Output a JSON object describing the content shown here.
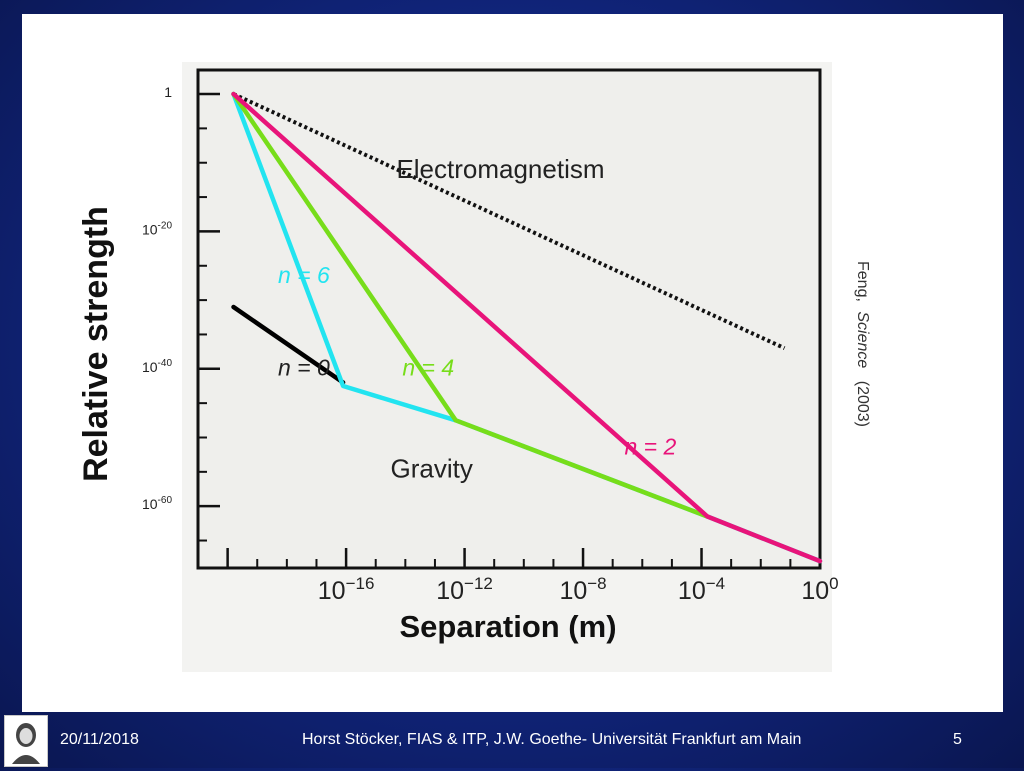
{
  "footer": {
    "date": "20/11/2018",
    "center_text": "Horst Stöcker, FIAS & ITP, J.W. Goethe- Universität Frankfurt am Main",
    "page_number": "5"
  },
  "side_note": {
    "author": "Feng,",
    "journal": "Science",
    "year": "(2003)"
  },
  "colors": {
    "slide_background": "#10247a",
    "panel": "#ffffff",
    "plot_background": "#efefec",
    "electromagnetism": "#111111",
    "gravity_n0": "#000000",
    "gravity_n2": "#e8147a",
    "gravity_n4": "#77dd1a",
    "gravity_n6": "#22e4f0"
  },
  "chart_data": {
    "type": "line",
    "xlabel": "Separation (m)",
    "ylabel": "Relative strength",
    "x_scale": "log10",
    "y_scale": "log10",
    "xlim": [
      -21,
      0
    ],
    "ylim": [
      -69,
      3.5
    ],
    "x_ticks": [
      {
        "value": -16,
        "base": "10",
        "exp": "−16"
      },
      {
        "value": -12,
        "base": "10",
        "exp": "−12"
      },
      {
        "value": -8,
        "base": "10",
        "exp": "−8"
      },
      {
        "value": -4,
        "base": "10",
        "exp": "−4"
      },
      {
        "value": 0,
        "base": "10",
        "exp": "0"
      }
    ],
    "y_ticks": [
      {
        "value": 0,
        "base": "1",
        "exp": ""
      },
      {
        "value": -20,
        "base": "10",
        "exp": "-20"
      },
      {
        "value": -40,
        "base": "10",
        "exp": "-40"
      },
      {
        "value": -60,
        "base": "10",
        "exp": "-60"
      }
    ],
    "series": [
      {
        "key": "electromagnetism",
        "style": "dotted",
        "x": [
          -19.8,
          -1.2
        ],
        "y": [
          0,
          -37
        ]
      },
      {
        "key": "n0",
        "style": "solid",
        "x": [
          -19.8,
          -16.1
        ],
        "y": [
          -31,
          -42
        ]
      },
      {
        "key": "n6",
        "style": "solid",
        "x": [
          -19.8,
          -16.1,
          -12.3,
          -3.8,
          0
        ],
        "y": [
          0,
          -42.5,
          -47.5,
          -61.5,
          -68
        ]
      },
      {
        "key": "n4",
        "style": "solid",
        "x": [
          -19.8,
          -12.3,
          -3.8
        ],
        "y": [
          0,
          -47.5,
          -61.5
        ]
      },
      {
        "key": "n2",
        "style": "solid",
        "x": [
          -19.8,
          -3.8,
          0
        ],
        "y": [
          0,
          -61.5,
          -68
        ]
      }
    ],
    "annotations": [
      {
        "key": "electromagnetism",
        "text": "Electromagnetism",
        "italic": false,
        "x": -14.3,
        "y": -12.2
      },
      {
        "key": "gravity",
        "text": "Gravity",
        "italic": false,
        "x": -14.5,
        "y": -55.8
      },
      {
        "key": "n0",
        "text": "n = 0",
        "italic": true,
        "x": -18.3,
        "y": -41
      },
      {
        "key": "n6",
        "text": "n = 6",
        "italic": true,
        "x": -18.3,
        "y": -27.5
      },
      {
        "key": "n4",
        "text": "n = 4",
        "italic": true,
        "x": -14.1,
        "y": -41
      },
      {
        "key": "n2",
        "text": "n = 2",
        "italic": true,
        "x": -6.6,
        "y": -52.5
      }
    ]
  }
}
